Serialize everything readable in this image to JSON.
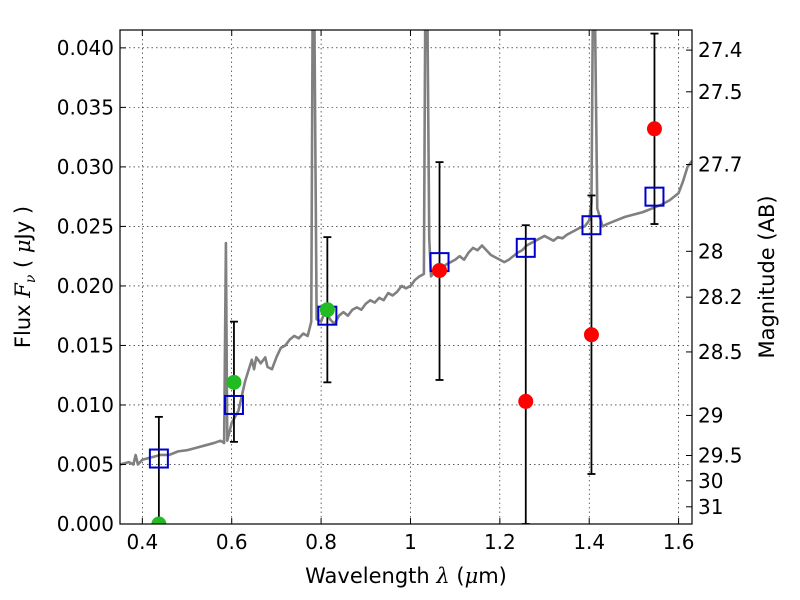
{
  "chart_data": {
    "type": "scatter",
    "xlabel": {
      "prefix": "Wavelength  ",
      "var": "λ",
      "unit_open": " (",
      "unit_mu": "μ",
      "unit_close": "m)"
    },
    "ylabel": {
      "prefix": "Flux  ",
      "var": "F",
      "sub": "ν",
      "unit_open": "  ( ",
      "unit_mu": "μ",
      "unit_close": "Jy )"
    },
    "y2label": "Magnitude (AB)",
    "xlim": [
      0.35,
      1.63
    ],
    "ylim": [
      0.0,
      0.0415
    ],
    "grid": true,
    "x_ticks": [
      {
        "v": 0.4,
        "label": "0.4"
      },
      {
        "v": 0.6,
        "label": "0.6"
      },
      {
        "v": 0.8,
        "label": "0.8"
      },
      {
        "v": 1.0,
        "label": "1"
      },
      {
        "v": 1.2,
        "label": "1.2"
      },
      {
        "v": 1.4,
        "label": "1.4"
      },
      {
        "v": 1.6,
        "label": "1.6"
      }
    ],
    "y_ticks": [
      {
        "v": 0.0,
        "label": "0.000"
      },
      {
        "v": 0.005,
        "label": "0.005"
      },
      {
        "v": 0.01,
        "label": "0.010"
      },
      {
        "v": 0.015,
        "label": "0.015"
      },
      {
        "v": 0.02,
        "label": "0.020"
      },
      {
        "v": 0.025,
        "label": "0.025"
      },
      {
        "v": 0.03,
        "label": "0.030"
      },
      {
        "v": 0.035,
        "label": "0.035"
      },
      {
        "v": 0.04,
        "label": "0.040"
      }
    ],
    "mag_ticks": [
      {
        "mag": 27.4,
        "label": "27.4"
      },
      {
        "mag": 27.5,
        "label": "27.5"
      },
      {
        "mag": 27.7,
        "label": "27.7"
      },
      {
        "mag": 28.0,
        "label": "28"
      },
      {
        "mag": 28.2,
        "label": "28.2"
      },
      {
        "mag": 28.5,
        "label": "28.5"
      },
      {
        "mag": 29.0,
        "label": "29"
      },
      {
        "mag": 29.5,
        "label": "29.5"
      },
      {
        "mag": 30.0,
        "label": "30"
      },
      {
        "mag": 31.0,
        "label": "31"
      }
    ],
    "series": [
      {
        "kind": "line",
        "color": "#808080",
        "points": [
          [
            0.35,
            0.005
          ],
          [
            0.37,
            0.0052
          ],
          [
            0.38,
            0.005
          ],
          [
            0.385,
            0.0058
          ],
          [
            0.39,
            0.005
          ],
          [
            0.4,
            0.0054
          ],
          [
            0.42,
            0.0056
          ],
          [
            0.44,
            0.0058
          ],
          [
            0.46,
            0.0058
          ],
          [
            0.48,
            0.0061
          ],
          [
            0.5,
            0.0062
          ],
          [
            0.52,
            0.0064
          ],
          [
            0.54,
            0.0066
          ],
          [
            0.56,
            0.0068
          ],
          [
            0.575,
            0.007
          ],
          [
            0.583,
            0.0068
          ],
          [
            0.587,
            0.0236
          ],
          [
            0.59,
            0.007
          ],
          [
            0.6,
            0.0085
          ],
          [
            0.615,
            0.0095
          ],
          [
            0.63,
            0.012
          ],
          [
            0.645,
            0.0138
          ],
          [
            0.65,
            0.013
          ],
          [
            0.655,
            0.014
          ],
          [
            0.665,
            0.0135
          ],
          [
            0.675,
            0.014
          ],
          [
            0.68,
            0.0132
          ],
          [
            0.69,
            0.013
          ],
          [
            0.7,
            0.014
          ],
          [
            0.71,
            0.0148
          ],
          [
            0.72,
            0.015
          ],
          [
            0.73,
            0.0155
          ],
          [
            0.74,
            0.0158
          ],
          [
            0.75,
            0.0156
          ],
          [
            0.76,
            0.016
          ],
          [
            0.77,
            0.0158
          ],
          [
            0.778,
            0.017
          ],
          [
            0.781,
            0.0425
          ],
          [
            0.785,
            0.0425
          ],
          [
            0.79,
            0.0172
          ],
          [
            0.8,
            0.017
          ],
          [
            0.81,
            0.018
          ],
          [
            0.82,
            0.0172
          ],
          [
            0.83,
            0.0168
          ],
          [
            0.84,
            0.0175
          ],
          [
            0.85,
            0.0178
          ],
          [
            0.86,
            0.0175
          ],
          [
            0.87,
            0.018
          ],
          [
            0.88,
            0.0182
          ],
          [
            0.89,
            0.018
          ],
          [
            0.9,
            0.0185
          ],
          [
            0.91,
            0.0188
          ],
          [
            0.92,
            0.0186
          ],
          [
            0.93,
            0.019
          ],
          [
            0.94,
            0.0188
          ],
          [
            0.95,
            0.0194
          ],
          [
            0.96,
            0.0192
          ],
          [
            0.97,
            0.0195
          ],
          [
            0.98,
            0.02
          ],
          [
            0.99,
            0.0198
          ],
          [
            1.0,
            0.02
          ],
          [
            1.01,
            0.0205
          ],
          [
            1.02,
            0.0208
          ],
          [
            1.03,
            0.021
          ],
          [
            1.033,
            0.0425
          ],
          [
            1.038,
            0.0425
          ],
          [
            1.042,
            0.024
          ],
          [
            1.046,
            0.0208
          ],
          [
            1.05,
            0.021
          ],
          [
            1.06,
            0.0212
          ],
          [
            1.07,
            0.0215
          ],
          [
            1.08,
            0.0218
          ],
          [
            1.09,
            0.022
          ],
          [
            1.1,
            0.0222
          ],
          [
            1.11,
            0.0225
          ],
          [
            1.12,
            0.0222
          ],
          [
            1.13,
            0.0228
          ],
          [
            1.14,
            0.0232
          ],
          [
            1.15,
            0.023
          ],
          [
            1.16,
            0.0234
          ],
          [
            1.17,
            0.023
          ],
          [
            1.18,
            0.0226
          ],
          [
            1.19,
            0.0224
          ],
          [
            1.2,
            0.0222
          ],
          [
            1.21,
            0.022
          ],
          [
            1.22,
            0.0222
          ],
          [
            1.23,
            0.0225
          ],
          [
            1.24,
            0.0228
          ],
          [
            1.25,
            0.023
          ],
          [
            1.26,
            0.0234
          ],
          [
            1.27,
            0.0236
          ],
          [
            1.28,
            0.0238
          ],
          [
            1.29,
            0.024
          ],
          [
            1.3,
            0.0242
          ],
          [
            1.31,
            0.024
          ],
          [
            1.32,
            0.0238
          ],
          [
            1.33,
            0.0241
          ],
          [
            1.34,
            0.024
          ],
          [
            1.35,
            0.0243
          ],
          [
            1.36,
            0.0245
          ],
          [
            1.37,
            0.0247
          ],
          [
            1.38,
            0.0249
          ],
          [
            1.39,
            0.025
          ],
          [
            1.4,
            0.0255
          ],
          [
            1.405,
            0.027
          ],
          [
            1.408,
            0.0425
          ],
          [
            1.413,
            0.0425
          ],
          [
            1.418,
            0.0265
          ],
          [
            1.43,
            0.025
          ],
          [
            1.44,
            0.0252
          ],
          [
            1.46,
            0.0255
          ],
          [
            1.48,
            0.0258
          ],
          [
            1.5,
            0.026
          ],
          [
            1.52,
            0.0262
          ],
          [
            1.54,
            0.0265
          ],
          [
            1.56,
            0.0268
          ],
          [
            1.58,
            0.0272
          ],
          [
            1.6,
            0.0278
          ],
          [
            1.61,
            0.0288
          ],
          [
            1.62,
            0.03
          ],
          [
            1.63,
            0.0305
          ]
        ]
      },
      {
        "kind": "points",
        "marker": "square",
        "color": "#0000cc",
        "points": [
          [
            0.437,
            0.0055
          ],
          [
            0.605,
            0.01
          ],
          [
            0.814,
            0.0175
          ],
          [
            1.065,
            0.022
          ],
          [
            1.258,
            0.0232
          ],
          [
            1.405,
            0.0251
          ],
          [
            1.546,
            0.0275
          ]
        ]
      },
      {
        "kind": "points",
        "marker": "circle",
        "color": "#22bb22",
        "points": [
          [
            0.437,
            0.0
          ],
          [
            0.605,
            0.0119
          ],
          [
            0.814,
            0.018
          ]
        ]
      },
      {
        "kind": "points",
        "marker": "circle",
        "color": "#ff0000",
        "points": [
          [
            1.065,
            0.0213
          ],
          [
            1.258,
            0.0103
          ],
          [
            1.405,
            0.0159
          ],
          [
            1.546,
            0.0332
          ]
        ]
      },
      {
        "kind": "errorbars",
        "color": "#000000",
        "bars": [
          {
            "x": 0.437,
            "lo": 0.0,
            "hi": 0.009
          },
          {
            "x": 0.605,
            "lo": 0.0069,
            "hi": 0.017
          },
          {
            "x": 0.814,
            "lo": 0.0119,
            "hi": 0.0241
          },
          {
            "x": 1.065,
            "lo": 0.0121,
            "hi": 0.0304
          },
          {
            "x": 1.258,
            "lo": 0.0,
            "hi": 0.0251
          },
          {
            "x": 1.405,
            "lo": 0.0042,
            "hi": 0.0276
          },
          {
            "x": 1.546,
            "lo": 0.0252,
            "hi": 0.0412
          }
        ]
      }
    ]
  }
}
